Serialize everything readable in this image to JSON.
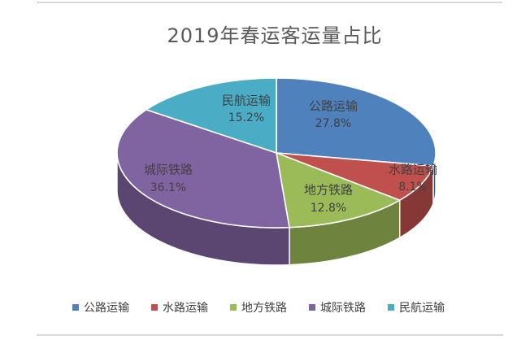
{
  "title": "2019年春运客运量占比",
  "chart_data": {
    "type": "pie",
    "style": "3d-pie",
    "title": "2019年春运客运量占比",
    "legend_position": "bottom",
    "start_angle_deg": 0,
    "direction": "clockwise",
    "slices": [
      {
        "label": "公路运输",
        "value": 27.8,
        "pct_label": "27.8%",
        "color": "#4F81BD"
      },
      {
        "label": "水路运输",
        "value": 8.1,
        "pct_label": "8.1%",
        "color": "#C0504D"
      },
      {
        "label": "地方铁路",
        "value": 12.8,
        "pct_label": "12.8%",
        "color": "#9BBB59"
      },
      {
        "label": "城际铁路",
        "value": 36.1,
        "pct_label": "36.1%",
        "color": "#8064A2"
      },
      {
        "label": "民航运输",
        "value": 15.2,
        "pct_label": "15.2%",
        "color": "#4BACC6"
      }
    ]
  }
}
